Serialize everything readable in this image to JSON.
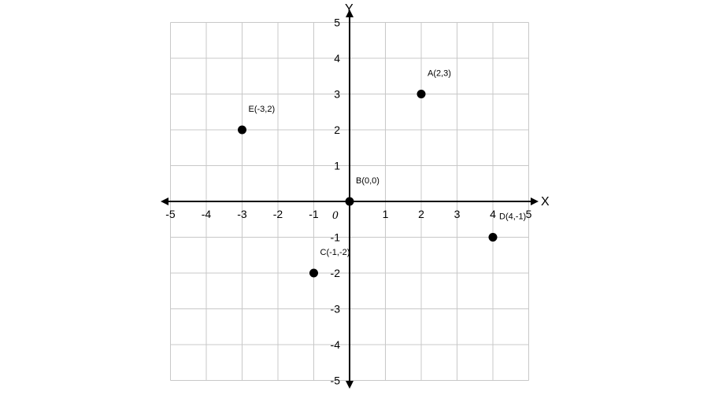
{
  "chart_data": {
    "type": "scatter",
    "title": "",
    "xlabel": "X",
    "ylabel": "Y",
    "xlim": [
      -5,
      5
    ],
    "ylim": [
      -5,
      5
    ],
    "grid": true,
    "origin_label": "0",
    "x_ticks": [
      "-5",
      "-4",
      "-3",
      "-2",
      "-1",
      "1",
      "2",
      "3",
      "4",
      "5"
    ],
    "y_ticks": [
      "5",
      "4",
      "3",
      "2",
      "1",
      "-1",
      "-2",
      "-3",
      "-4",
      "-5"
    ],
    "points": [
      {
        "label": "A(2,3)",
        "x": 2,
        "y": 3
      },
      {
        "label": "B(0,0)",
        "x": 0,
        "y": 0
      },
      {
        "label": "C(-1,-2)",
        "x": -1,
        "y": -2
      },
      {
        "label": "D(4,-1)",
        "x": 4,
        "y": -1
      },
      {
        "label": "E(-3,2)",
        "x": -3,
        "y": 2
      }
    ],
    "colors": {
      "grid": "#c8c8c8",
      "axis": "#000000",
      "point": "#000000"
    }
  }
}
